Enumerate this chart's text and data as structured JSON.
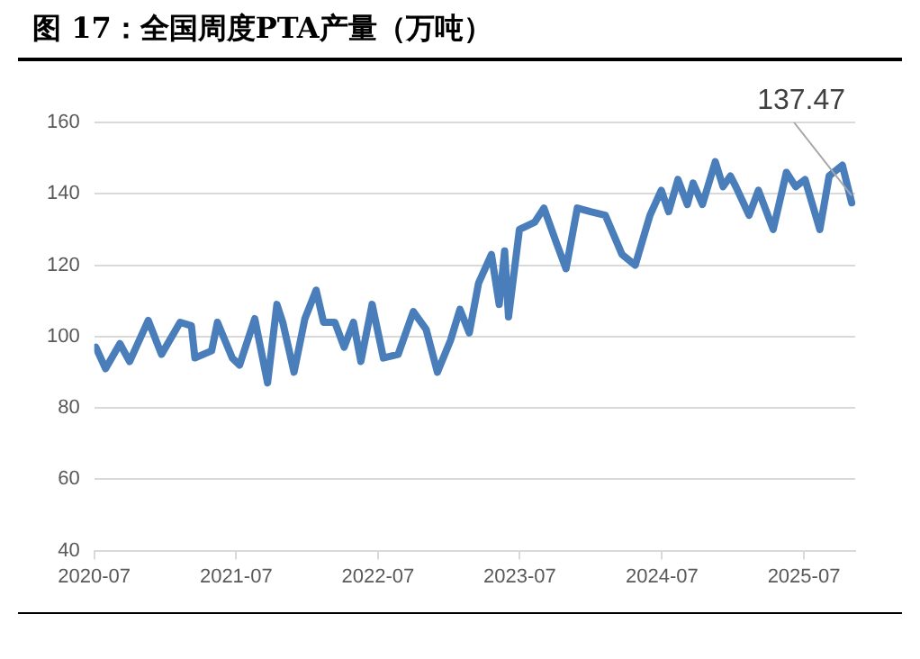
{
  "chart_data": {
    "type": "line",
    "title": "图 17：全国周度PTA产量（万吨）",
    "x": [
      "2020-07-05",
      "2020-07-30",
      "2020-09-05",
      "2020-09-30",
      "2020-11-17",
      "2020-12-21",
      "2021-02-07",
      "2021-03-08",
      "2021-03-17",
      "2021-04-29",
      "2021-05-14",
      "2021-06-21",
      "2021-07-10",
      "2021-08-18",
      "2021-09-20",
      "2021-10-14",
      "2021-10-29",
      "2021-11-27",
      "2021-12-25",
      "2022-01-23",
      "2022-02-11",
      "2022-03-12",
      "2022-04-05",
      "2022-04-29",
      "2022-05-18",
      "2022-06-16",
      "2022-07-15",
      "2022-08-22",
      "2022-09-30",
      "2022-11-02",
      "2022-12-01",
      "2023-01-04",
      "2023-01-28",
      "2023-02-21",
      "2023-03-17",
      "2023-04-19",
      "2023-05-09",
      "2023-05-23",
      "2023-06-02",
      "2023-06-30",
      "2023-08-08",
      "2023-09-01",
      "2023-10-04",
      "2023-10-28",
      "2023-11-26",
      "2023-12-30",
      "2024-02-06",
      "2024-03-20",
      "2024-04-23",
      "2024-05-31",
      "2024-06-29",
      "2024-07-18",
      "2024-08-11",
      "2024-09-04",
      "2024-09-19",
      "2024-10-13",
      "2024-11-15",
      "2024-12-05",
      "2024-12-24",
      "2025-01-07",
      "2025-02-10",
      "2025-03-06",
      "2025-04-13",
      "2025-05-17",
      "2025-06-10",
      "2025-07-04",
      "2025-08-11",
      "2025-09-04",
      "2025-10-08",
      "2025-11-01"
    ],
    "series": [
      {
        "color": "#4a7ebb",
        "values": [
          97,
          91,
          98,
          93,
          104.5,
          95,
          104,
          103,
          94,
          96,
          104,
          94,
          92,
          105,
          87,
          109,
          104,
          90,
          105,
          113,
          104,
          104,
          97,
          104,
          93,
          109,
          94,
          95,
          107,
          102,
          90,
          99,
          107.6,
          101,
          115,
          123,
          109,
          124,
          105.5,
          130,
          132,
          136,
          126,
          119,
          136,
          135,
          134,
          123,
          120,
          134,
          141,
          135,
          144,
          137,
          143,
          137,
          149,
          142,
          145,
          142,
          134,
          141,
          130,
          146,
          142,
          144,
          130,
          145,
          148,
          137.47
        ]
      }
    ],
    "xlim": [
      "2020-07-01",
      "2025-11-10"
    ],
    "xticks": [
      "2020-07",
      "2021-07",
      "2022-07",
      "2023-07",
      "2024-07",
      "2025-07"
    ],
    "ylim": [
      40,
      160
    ],
    "yticks": [
      40,
      60,
      80,
      100,
      120,
      140,
      160
    ],
    "grid": "y",
    "legend": false,
    "marker": "none",
    "line_style": "solid",
    "annotations": [
      {
        "text": "137.47",
        "x": "2025-11-01",
        "y": 137.47
      }
    ]
  }
}
